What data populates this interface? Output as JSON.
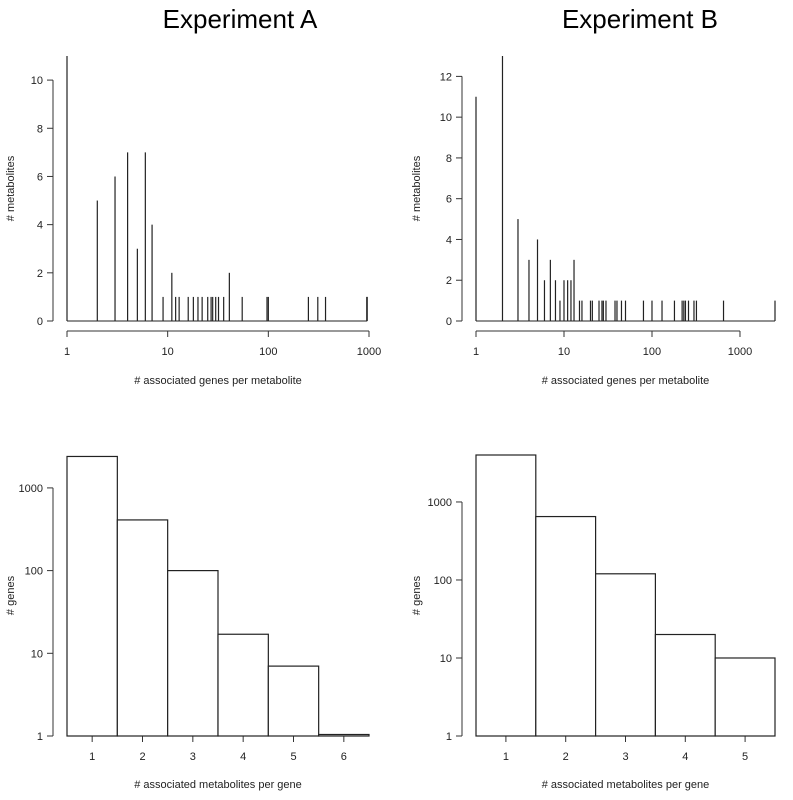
{
  "experiments": [
    {
      "title": "Experiment A"
    },
    {
      "title": "Experiment B"
    }
  ],
  "chart_data": [
    {
      "id": "a-top",
      "type": "bar",
      "experiment": "Experiment A",
      "xlabel": "# associated genes per metabolite",
      "ylabel": "# metabolites",
      "xscale": "log",
      "xlim": [
        1,
        1000
      ],
      "ylim": [
        0,
        11
      ],
      "xticks": [
        1,
        10,
        100,
        1000
      ],
      "xtick_labels": [
        "1",
        "10",
        "100",
        "1000"
      ],
      "yticks": [
        0,
        2,
        4,
        6,
        8,
        10
      ],
      "ytick_labels": [
        "0",
        "2",
        "4",
        "6",
        "8",
        "10"
      ],
      "x": [
        1,
        2,
        3,
        4,
        5,
        6,
        7,
        9,
        11,
        12,
        13,
        16,
        18,
        20,
        22,
        25,
        27,
        28,
        30,
        32,
        36,
        41,
        55,
        97,
        100,
        250,
        310,
        370,
        950,
        960
      ],
      "values": [
        11,
        5,
        6,
        7,
        3,
        7,
        4,
        1,
        2,
        1,
        1,
        1,
        1,
        1,
        1,
        1,
        1,
        1,
        1,
        1,
        1,
        2,
        1,
        1,
        1,
        1,
        1,
        1,
        1,
        1
      ]
    },
    {
      "id": "b-top",
      "type": "bar",
      "experiment": "Experiment B",
      "xlabel": "# associated genes per metabolite",
      "ylabel": "# metabolites",
      "xscale": "log",
      "xlim": [
        1,
        2500
      ],
      "ylim": [
        0,
        13
      ],
      "xticks": [
        1,
        10,
        100,
        1000
      ],
      "xtick_labels": [
        "1",
        "10",
        "100",
        "1000"
      ],
      "yticks": [
        0,
        2,
        4,
        6,
        8,
        10,
        12
      ],
      "ytick_labels": [
        "0",
        "2",
        "4",
        "6",
        "8",
        "10",
        "12"
      ],
      "x": [
        1,
        2,
        3,
        4,
        5,
        6,
        7,
        8,
        9,
        10,
        11,
        12,
        13,
        15,
        16,
        20,
        21,
        25,
        27,
        28,
        30,
        38,
        40,
        45,
        50,
        80,
        100,
        130,
        180,
        220,
        230,
        240,
        260,
        300,
        320,
        650,
        2500
      ],
      "values": [
        11,
        13,
        5,
        3,
        4,
        2,
        3,
        2,
        1,
        2,
        2,
        2,
        3,
        1,
        1,
        1,
        1,
        1,
        1,
        1,
        1,
        1,
        1,
        1,
        1,
        1,
        1,
        1,
        1,
        1,
        1,
        1,
        1,
        1,
        1,
        1,
        1
      ]
    },
    {
      "id": "a-bottom",
      "type": "bar",
      "experiment": "Experiment A",
      "xlabel": "# associated metabolites per gene",
      "ylabel": "# genes",
      "yscale": "log",
      "ylim": [
        1,
        2500
      ],
      "xlim": [
        0.5,
        6.5
      ],
      "xticks": [
        1,
        2,
        3,
        4,
        5,
        6
      ],
      "xtick_labels": [
        "1",
        "2",
        "3",
        "4",
        "5",
        "6"
      ],
      "yticks": [
        1,
        10,
        100,
        1000
      ],
      "ytick_labels": [
        "1",
        "10",
        "100",
        "1000"
      ],
      "categories": [
        1,
        2,
        3,
        4,
        5,
        6
      ],
      "values": [
        2400,
        410,
        100,
        17,
        7,
        1
      ]
    },
    {
      "id": "b-bottom",
      "type": "bar",
      "experiment": "Experiment B",
      "xlabel": "# associated metabolites per gene",
      "ylabel": "# genes",
      "yscale": "log",
      "ylim": [
        1,
        4000
      ],
      "xlim": [
        0.5,
        5.5
      ],
      "xticks": [
        1,
        2,
        3,
        4,
        5
      ],
      "xtick_labels": [
        "1",
        "2",
        "3",
        "4",
        "5"
      ],
      "yticks": [
        1,
        10,
        100,
        1000
      ],
      "ytick_labels": [
        "1",
        "10",
        "100",
        "1000"
      ],
      "categories": [
        1,
        2,
        3,
        4,
        5
      ],
      "values": [
        4000,
        650,
        120,
        20,
        10
      ]
    }
  ]
}
